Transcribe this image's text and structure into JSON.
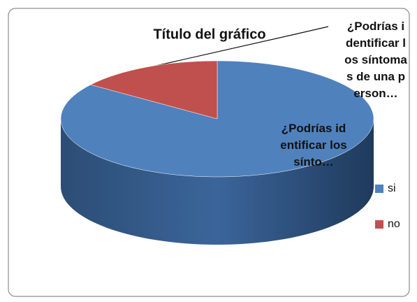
{
  "chart_data": {
    "type": "pie3d",
    "title": "Título del gráfico",
    "categories": [
      "si",
      "no"
    ],
    "values": [
      85,
      15
    ],
    "colors": [
      "#4f81bd",
      "#c0504d"
    ],
    "data_labels": [
      "¿Podrías identificar los sínto…",
      "¿Podrías identificar los síntomas de una person…"
    ],
    "legend": "right"
  }
}
